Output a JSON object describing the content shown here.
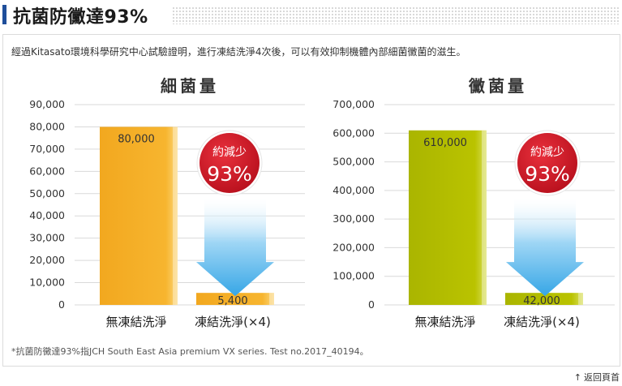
{
  "header": {
    "title": "抗菌防黴達93%"
  },
  "intro": "經過Kitasato環境科學研究中心試驗證明，進行凍結洗淨4次後，可以有效抑制機體內部細菌黴菌的滋生。",
  "footnote": "*抗菌防黴達93%指JCH South East Asia premium VX series. Test no.2017_40194。",
  "back_to_top": "返回頁首",
  "colors": {
    "bar_left": "#f5b52e",
    "bar_right": "#b8bf00",
    "badge": "#d21c2a",
    "arrow": "#36a6e6",
    "header_accent": "#1f4e9a"
  },
  "chart_data": [
    {
      "type": "bar",
      "title": "細菌量",
      "categories": [
        "無凍結洗淨",
        "凍結洗淨(×4)"
      ],
      "values": [
        80000,
        5400
      ],
      "value_labels": [
        "80,000",
        "5,400"
      ],
      "yticks": [
        "90,000",
        "80,000",
        "70,000",
        "60,000",
        "50,000",
        "40,000",
        "30,000",
        "20,000",
        "10,000",
        "0"
      ],
      "ylim": [
        0,
        90000
      ],
      "badge": {
        "line1": "約減少",
        "line2": "93%"
      },
      "grid": true
    },
    {
      "type": "bar",
      "title": "黴菌量",
      "categories": [
        "無凍結洗淨",
        "凍結洗淨(×4)"
      ],
      "values": [
        610000,
        42000
      ],
      "value_labels": [
        "610,000",
        "42,000"
      ],
      "yticks": [
        "700,000",
        "600,000",
        "500,000",
        "400,000",
        "300,000",
        "200,000",
        "100,000",
        "0"
      ],
      "ylim": [
        0,
        700000
      ],
      "badge": {
        "line1": "約減少",
        "line2": "93%"
      },
      "grid": true
    }
  ]
}
